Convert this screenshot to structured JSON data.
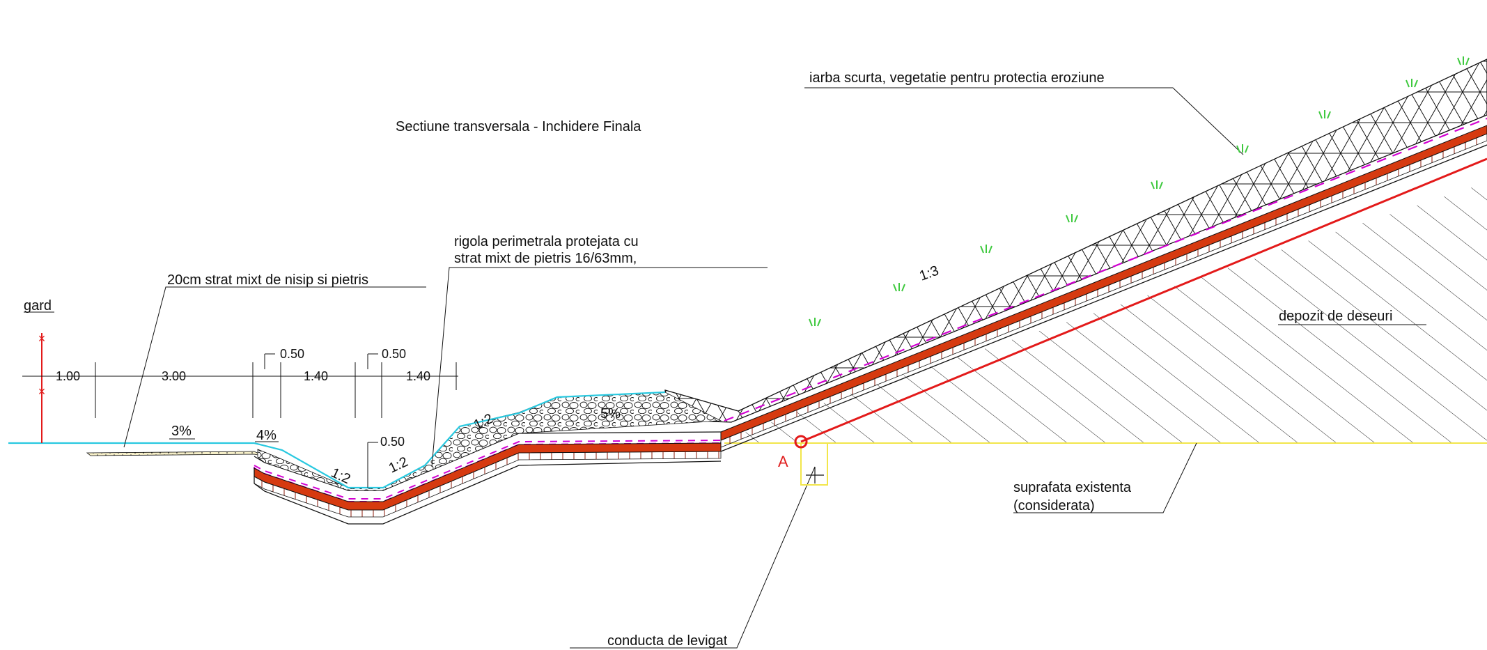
{
  "title": "Sectiune transversala - Inchidere Finala",
  "labels": {
    "grass": "iarba scurta, vegetatie pentru protectia eroziune",
    "ditch_line1": "rigola perimetrala protejata cu",
    "ditch_line2": "strat mixt de pietris 16/63mm,",
    "mixed_layer": "20cm strat mixt de nisip si pietris",
    "fence": "gard",
    "waste": "depozit de deseuri",
    "surface_line1": "suprafata existenta",
    "surface_line2": "(considerata)",
    "leachate": "conducta de levigat",
    "point_a": "A"
  },
  "dimensions": {
    "d1": "1.00",
    "d2": "3.00",
    "d3": "1.40",
    "d4": "1.40",
    "offset1": "0.50",
    "offset2": "0.50",
    "offset3": "0.50"
  },
  "slopes": {
    "s1": "3%",
    "s2": "4%",
    "s3": "1:2",
    "s4": "1:2",
    "s5": "1:2",
    "s6": "5%",
    "s7": "1:3"
  },
  "colors": {
    "liner": "#d63a10",
    "geotextile": "#d200d2",
    "top_surface": "#29c9e0",
    "existing_ground": "#f2e64a",
    "waste_contour": "#e31a1a",
    "vegetation": "#3ec93e",
    "point_a": "#e31a1a"
  }
}
